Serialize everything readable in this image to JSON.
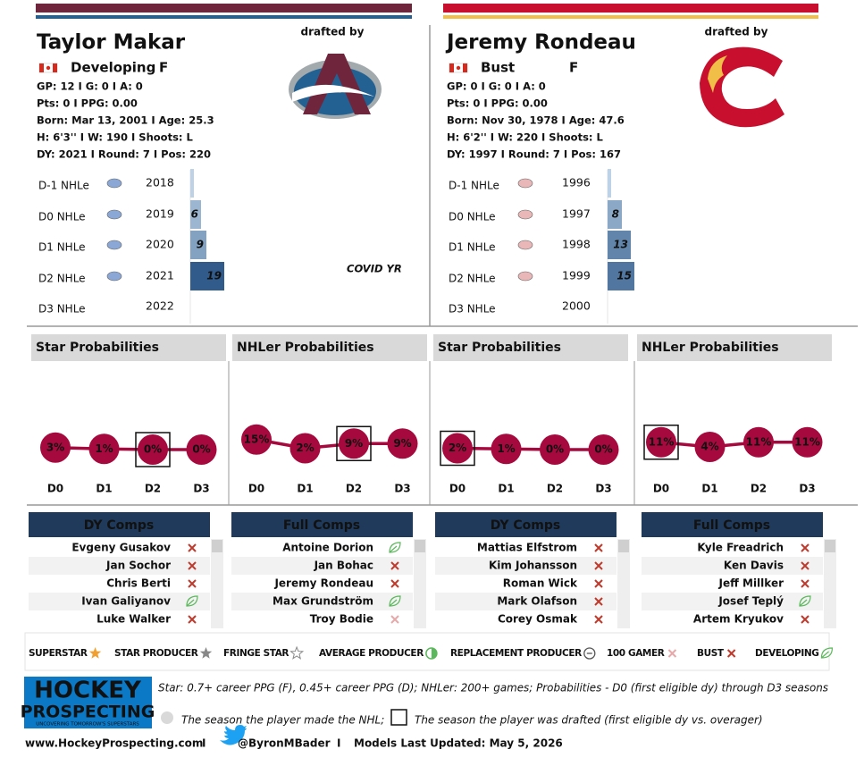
{
  "players": [
    {
      "name": "Taylor Makar",
      "status": "Developing",
      "position": "F",
      "drafted_by": "drafted by",
      "stats": [
        "GP: 12 I G: 0 I A: 0",
        "Pts: 0 I PPG: 0.00",
        "Born: Mar 13, 2001 I Age: 25.3",
        "H: 6'3'' I W: 190 I Shoots: L",
        "DY: 2021 I Round: 7 I Pos: 220"
      ],
      "seasons": [
        {
          "label": "D-1 NHLe",
          "year": "2018",
          "nhle": 2
        },
        {
          "label": "D0 NHLe",
          "year": "2019",
          "nhle": 6
        },
        {
          "label": "D1 NHLe",
          "year": "2020",
          "nhle": 9
        },
        {
          "label": "D2 NHLe",
          "year": "2021",
          "nhle": 19
        },
        {
          "label": "D3 NHLe",
          "year": "2022",
          "nhle": null
        }
      ],
      "note": "COVID YR",
      "charts": [
        {
          "title": "Star Probabilities",
          "categories": [
            "D0",
            "D1",
            "D2",
            "D3"
          ],
          "values": [
            3,
            1,
            0,
            0
          ],
          "value_labels": [
            "3%",
            "1%",
            "0%",
            "0%"
          ],
          "drafted": "D2"
        },
        {
          "title": "NHLer Probabilities",
          "categories": [
            "D0",
            "D1",
            "D2",
            "D3"
          ],
          "values": [
            15,
            2,
            9,
            9
          ],
          "value_labels": [
            "15%",
            "2%",
            "9%",
            "9%"
          ],
          "drafted": "D2"
        }
      ],
      "comps": [
        {
          "title": "DY Comps",
          "rows": [
            {
              "name": "Evgeny Gusakov",
              "outcome": "bust"
            },
            {
              "name": "Jan Sochor",
              "outcome": "bust"
            },
            {
              "name": "Chris Berti",
              "outcome": "bust"
            },
            {
              "name": "Ivan Galiyanov",
              "outcome": "average"
            },
            {
              "name": "Luke Walker",
              "outcome": "bust"
            }
          ]
        },
        {
          "title": "Full Comps",
          "rows": [
            {
              "name": "Antoine Dorion",
              "outcome": "average"
            },
            {
              "name": "Jan Bohac",
              "outcome": "bust"
            },
            {
              "name": "Jeremy Rondeau",
              "outcome": "bust"
            },
            {
              "name": "Max Grundström",
              "outcome": "average"
            },
            {
              "name": "Troy Bodie",
              "outcome": "gamer"
            }
          ]
        }
      ]
    },
    {
      "name": "Jeremy Rondeau",
      "status": "Bust",
      "position": "F",
      "drafted_by": "drafted by",
      "stats": [
        "GP: 0 I G: 0 I A: 0",
        "Pts: 0 I PPG: 0.00",
        "Born: Nov 30, 1978 I Age: 47.6",
        "H: 6'2'' I W: 220 I Shoots: L",
        "DY: 1997 I Round: 7 I Pos: 167"
      ],
      "seasons": [
        {
          "label": "D-1 NHLe",
          "year": "1996",
          "nhle": 2
        },
        {
          "label": "D0 NHLe",
          "year": "1997",
          "nhle": 8
        },
        {
          "label": "D1 NHLe",
          "year": "1998",
          "nhle": 13
        },
        {
          "label": "D2 NHLe",
          "year": "1999",
          "nhle": 15
        },
        {
          "label": "D3 NHLe",
          "year": "2000",
          "nhle": null
        }
      ],
      "charts": [
        {
          "title": "Star Probabilities",
          "categories": [
            "D0",
            "D1",
            "D2",
            "D3"
          ],
          "values": [
            2,
            1,
            0,
            0
          ],
          "value_labels": [
            "2%",
            "1%",
            "0%",
            "0%"
          ],
          "drafted": "D0"
        },
        {
          "title": "NHLer Probabilities",
          "categories": [
            "D0",
            "D1",
            "D2",
            "D3"
          ],
          "values": [
            11,
            4,
            11,
            11
          ],
          "value_labels": [
            "11%",
            "4%",
            "11%",
            "11%"
          ],
          "drafted": "D0"
        }
      ],
      "comps": [
        {
          "title": "DY Comps",
          "rows": [
            {
              "name": "Mattias Elfstrom",
              "outcome": "bust"
            },
            {
              "name": "Kim Johansson",
              "outcome": "bust"
            },
            {
              "name": "Roman Wick",
              "outcome": "bust"
            },
            {
              "name": "Mark Olafson",
              "outcome": "bust"
            },
            {
              "name": "Corey Osmak",
              "outcome": "bust"
            }
          ]
        },
        {
          "title": "Full Comps",
          "rows": [
            {
              "name": "Kyle Freadrich",
              "outcome": "bust"
            },
            {
              "name": "Ken Davis",
              "outcome": "bust"
            },
            {
              "name": "Jeff Millker",
              "outcome": "bust"
            },
            {
              "name": "Josef Teplý",
              "outcome": "average"
            },
            {
              "name": "Artem Kryukov",
              "outcome": "bust"
            }
          ]
        }
      ]
    }
  ],
  "legend": [
    {
      "label": "SUPERSTAR",
      "icon": "superstar"
    },
    {
      "label": "STAR PRODUCER",
      "icon": "star"
    },
    {
      "label": "FRINGE STAR",
      "icon": "fringe"
    },
    {
      "label": "AVERAGE PRODUCER",
      "icon": "average-producer"
    },
    {
      "label": "REPLACEMENT PRODUCER",
      "icon": "replacement"
    },
    {
      "label": "100 GAMER",
      "icon": "gamer"
    },
    {
      "label": "BUST",
      "icon": "bust"
    },
    {
      "label": "DEVELOPING",
      "icon": "average"
    }
  ],
  "footer": {
    "logo_top": "HOCKEY",
    "logo_bottom": "PROSPECTING",
    "tagline": "UNCOVERING TOMORROW'S SUPERSTARS",
    "definition": "Star: 0.7+ career PPG (F), 0.45+ career PPG (D); NHLer: 200+ games; Probabilities - D0 (first eligible dy) through D3 seasons",
    "nhl_note": "The season the player made the NHL;",
    "draft_note": "The season the player was drafted (first eligible dy vs. overager)",
    "website": "www.HockeyProspecting.com",
    "separator": "I",
    "twitter": "@ByronMBader",
    "updated": "Models Last Updated: May 5, 2026"
  }
}
